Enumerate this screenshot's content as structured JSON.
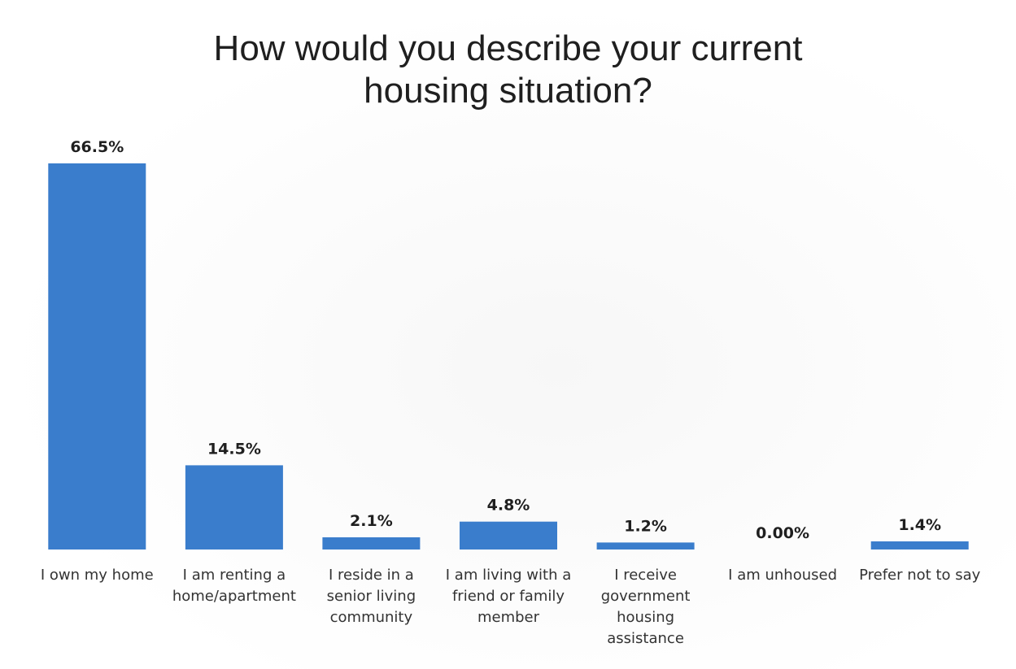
{
  "chart_data": {
    "type": "bar",
    "title": "How would you describe your current housing situation?",
    "xlabel": "",
    "ylabel": "",
    "ylim": [
      0,
      66.5
    ],
    "grid": false,
    "legend": "none",
    "bar_color": "#3a7dcc",
    "categories": [
      "I own my home",
      "I am renting a home/apartment",
      "I reside in a senior living community",
      "I am living with a friend or family member",
      "I receive government housing assistance",
      "I am unhoused",
      "Prefer not to say"
    ],
    "category_lines": [
      [
        "I own my home"
      ],
      [
        "I am renting a",
        "home/apartment"
      ],
      [
        "I reside in a",
        "senior living",
        "community"
      ],
      [
        "I am living with a",
        "friend or family",
        "member"
      ],
      [
        "I receive",
        "government",
        "housing",
        "assistance"
      ],
      [
        "I am unhoused"
      ],
      [
        "Prefer not to say"
      ]
    ],
    "values": [
      66.5,
      14.5,
      2.1,
      4.8,
      1.2,
      0.0,
      1.4
    ],
    "data_labels": [
      "66.5%",
      "14.5%",
      "2.1%",
      "4.8%",
      "1.2%",
      "0.00%",
      "1.4%"
    ]
  }
}
